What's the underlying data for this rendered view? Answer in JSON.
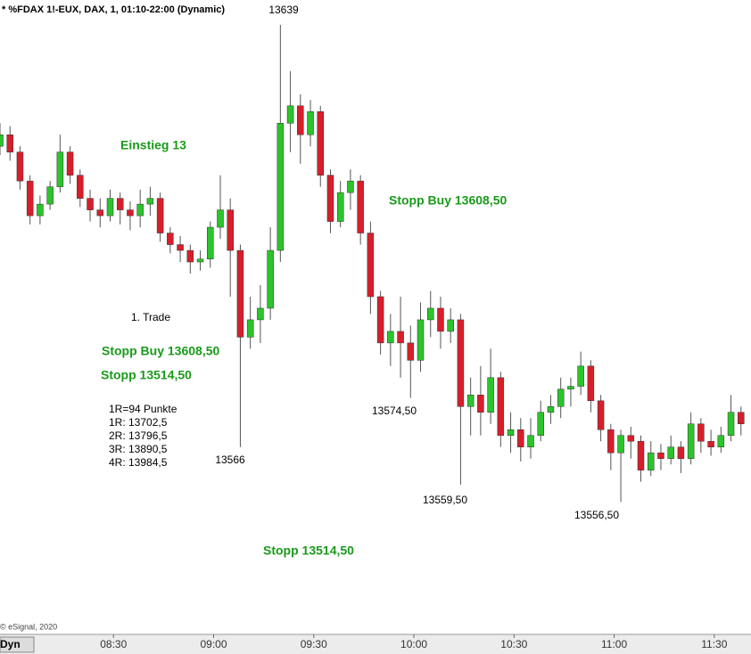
{
  "chart_data": {
    "type": "candlestick",
    "title": "* %FDAX 1!-EUX, DAX, 1, 01:10-22:00 (Dynamic)",
    "copyright": "© eSignal, 2020",
    "mode_label": "Dyn",
    "up_color": "#2bc42b",
    "down_color": "#d61f2a",
    "xlim": [
      476,
      701
    ],
    "xticks": [
      {
        "value": 510,
        "label": "08:30"
      },
      {
        "value": 540,
        "label": "09:00"
      },
      {
        "value": 570,
        "label": "09:30"
      },
      {
        "value": 600,
        "label": "10:00"
      },
      {
        "value": 630,
        "label": "10:30"
      },
      {
        "value": 660,
        "label": "11:00"
      },
      {
        "value": 690,
        "label": "11:30"
      }
    ],
    "ylim": [
      13533.6,
      13643.3
    ],
    "x": [
      476,
      479,
      482,
      485,
      488,
      491,
      494,
      497,
      500,
      503,
      506,
      509,
      512,
      515,
      518,
      521,
      524,
      527,
      530,
      533,
      536,
      539,
      542,
      545,
      548,
      551,
      554,
      557,
      560,
      563,
      566,
      569,
      572,
      575,
      578,
      581,
      584,
      587,
      590,
      593,
      596,
      599,
      602,
      605,
      608,
      611,
      614,
      617,
      620,
      623,
      626,
      629,
      632,
      635,
      638,
      641,
      644,
      647,
      650,
      653,
      656,
      659,
      662,
      665,
      668,
      671,
      674,
      677,
      680,
      683,
      686,
      689,
      692,
      695,
      698
    ],
    "open": [
      13618,
      13620,
      13617,
      13612,
      13606,
      13608,
      13611,
      13617,
      13613,
      13609,
      13607,
      13606,
      13609,
      13607,
      13606,
      13608,
      13609,
      13603,
      13601,
      13600,
      13598,
      13598.5,
      13604,
      13607,
      13600,
      13585,
      13588,
      13590,
      13600,
      13622,
      13625,
      13620,
      13624,
      13613,
      13605,
      13610,
      13612,
      13603,
      13592,
      13584,
      13586,
      13584,
      13581,
      13588,
      13590,
      13586,
      13588,
      13573,
      13575,
      13572,
      13578,
      13568,
      13569,
      13566,
      13568,
      13572,
      13573,
      13576,
      13576.5,
      13580,
      13574,
      13569,
      13565,
      13568,
      13567,
      13562,
      13565,
      13564,
      13566,
      13564,
      13570,
      13567,
      13566,
      13568,
      13572
    ],
    "high": [
      13622,
      13621.5,
      13618,
      13613,
      13609.5,
      13612,
      13620,
      13618,
      13614,
      13610.5,
      13609,
      13610.5,
      13610,
      13608.5,
      13610.5,
      13611,
      13610,
      13604,
      13602.5,
      13601,
      13600,
      13605,
      13613,
      13609,
      13601,
      13592,
      13594,
      13604,
      13639,
      13631,
      13627,
      13626,
      13625,
      13614,
      13612,
      13614,
      13613,
      13605,
      13593,
      13589,
      13592,
      13587,
      13591,
      13593,
      13592,
      13590,
      13589,
      13578,
      13580,
      13583,
      13579,
      13572,
      13571,
      13571,
      13574,
      13575,
      13578,
      13578,
      13582.5,
      13581,
      13575,
      13570,
      13569,
      13569.5,
      13568,
      13567,
      13566.5,
      13568,
      13567,
      13572,
      13571,
      13569,
      13569.5,
      13575,
      13573
    ],
    "low": [
      13616.5,
      13615.5,
      13610.5,
      13604.5,
      13604.5,
      13607,
      13610,
      13611.5,
      13607.5,
      13605,
      13604,
      13605,
      13604.5,
      13603.5,
      13604,
      13606,
      13601.5,
      13599.5,
      13598,
      13596,
      13596.5,
      13597,
      13602,
      13592,
      13566,
      13583,
      13584,
      13588,
      13598,
      13617,
      13615,
      13618,
      13611,
      13603,
      13604,
      13607,
      13601,
      13589,
      13582,
      13580,
      13578,
      13574.5,
      13579,
      13585,
      13583,
      13584,
      13559.5,
      13568,
      13568,
      13570,
      13566,
      13565,
      13563.5,
      13564,
      13567,
      13570,
      13571,
      13573,
      13575,
      13572,
      13567,
      13562,
      13556.5,
      13564,
      13560,
      13561,
      13562,
      13563,
      13561.5,
      13563,
      13565,
      13564.5,
      13565,
      13567,
      13568
    ],
    "close": [
      13620,
      13617,
      13612,
      13606,
      13608,
      13611,
      13617,
      13613,
      13609,
      13607,
      13606,
      13609,
      13607,
      13606,
      13608,
      13609,
      13603,
      13601,
      13600,
      13598,
      13598.5,
      13604,
      13607,
      13600,
      13585,
      13588,
      13590,
      13600,
      13622,
      13625,
      13620,
      13624,
      13613,
      13605,
      13610,
      13612,
      13603,
      13592,
      13584,
      13586,
      13584,
      13581,
      13588,
      13590,
      13586,
      13588,
      13573,
      13575,
      13572,
      13578,
      13568,
      13569,
      13566,
      13568,
      13572,
      13573,
      13576,
      13576.5,
      13580,
      13574,
      13569,
      13565,
      13568,
      13567,
      13562,
      13565,
      13564,
      13566,
      13564,
      13570,
      13567,
      13566,
      13568,
      13572,
      13570
    ],
    "price_labels": [
      "13639",
      "13566",
      "13574,50",
      "13559,50",
      "13556,50"
    ],
    "green_notes": [
      "Einstieg 13",
      "Stopp Buy 13608,50",
      "Stopp Buy 13608,50",
      "Stopp 13514,50",
      "Stopp 13514,50"
    ],
    "notes": [
      "1. Trade",
      "1R=94 Punkte",
      "1R: 13702,5",
      "2R: 13796,5",
      "3R: 13890,5",
      "4R: 13984,5"
    ]
  }
}
